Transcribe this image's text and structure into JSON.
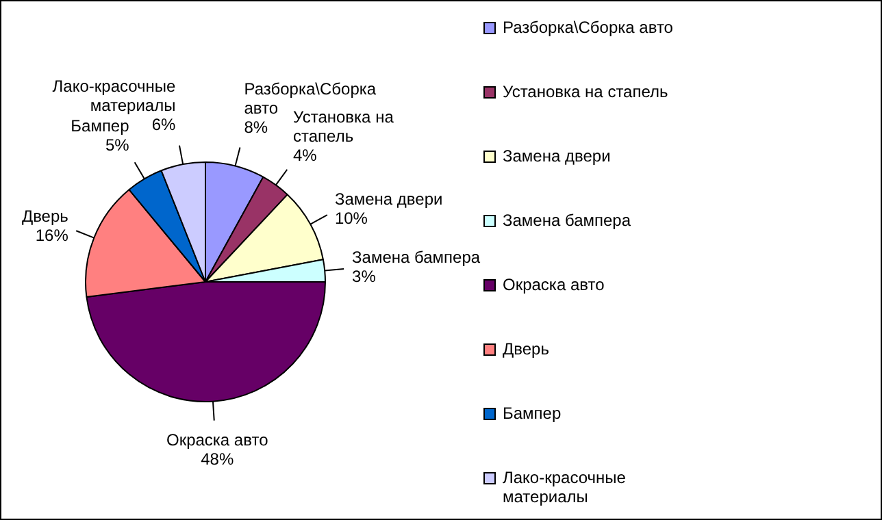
{
  "chart_data": {
    "type": "pie",
    "categories": [
      "Разборка\\Сборка авто",
      "Установка на стапель",
      "Замена двери",
      "Замена бампера",
      "Окраска авто",
      "Дверь",
      "Бампер",
      "Лако-красочные материалы"
    ],
    "values": [
      8,
      4,
      10,
      3,
      48,
      16,
      5,
      6
    ],
    "colors": [
      "#9999ff",
      "#993366",
      "#ffffcc",
      "#ccffff",
      "#660066",
      "#ff8080",
      "#0066cc",
      "#ccccff"
    ],
    "value_labels": [
      "8%",
      "4%",
      "10%",
      "3%",
      "48%",
      "16%",
      "5%",
      "6%"
    ],
    "legend": "right"
  }
}
